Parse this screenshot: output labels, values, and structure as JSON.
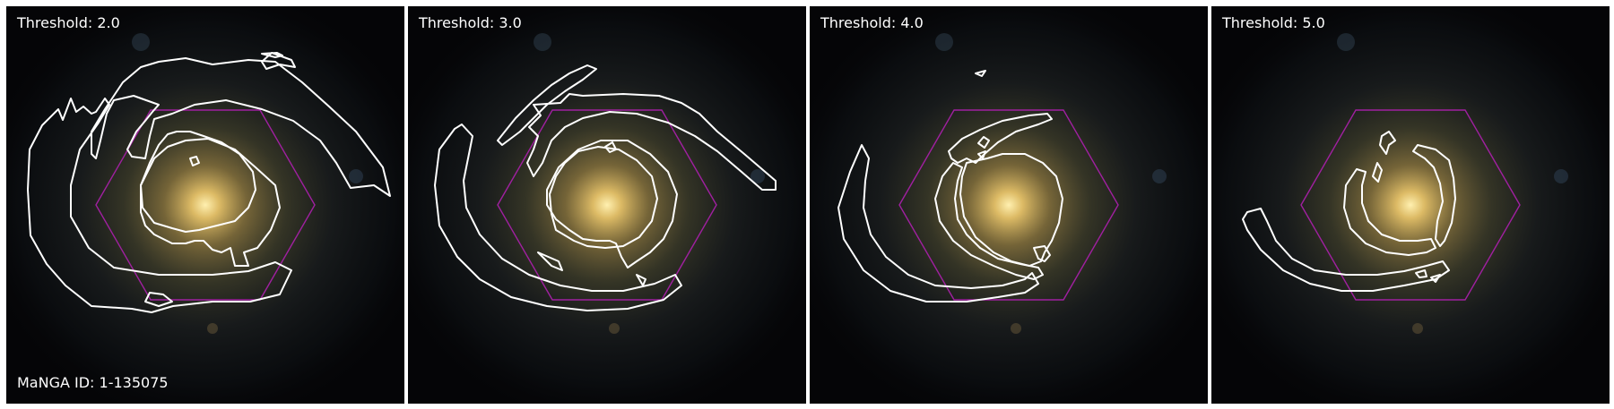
{
  "galaxy": {
    "id_label": "MaNGA ID: 1-135075"
  },
  "panels": [
    {
      "label": "Threshold: 2.0"
    },
    {
      "label": "Threshold: 3.0"
    },
    {
      "label": "Threshold: 4.0"
    },
    {
      "label": "Threshold: 5.0"
    }
  ],
  "colors": {
    "contour": "#ffffff",
    "hexagon": "#a020a0",
    "background": "#050507",
    "bulge": "#f2d27a"
  }
}
